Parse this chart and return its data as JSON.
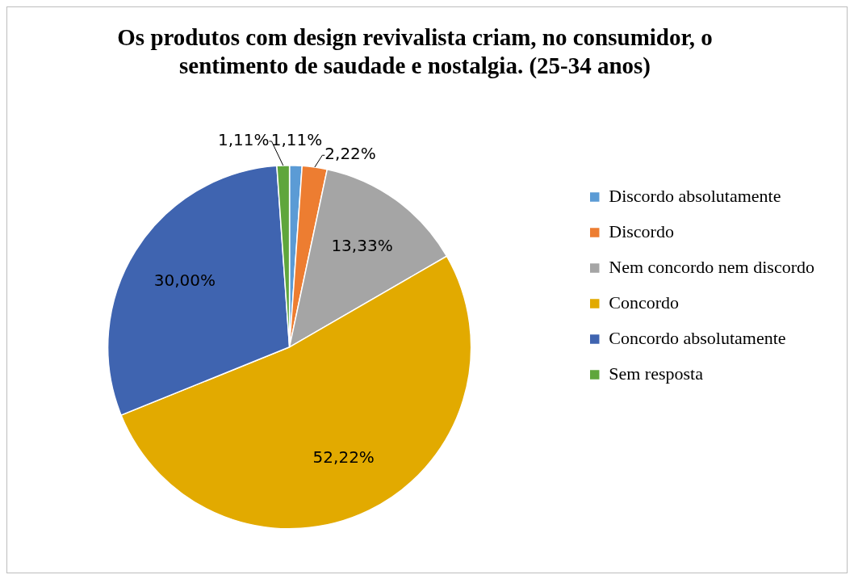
{
  "chart_data": {
    "type": "pie",
    "title": "Os produtos com design revivalista criam, no consumidor, o sentimento de saudade e nostalgia. (25-34 anos)",
    "categories": [
      "Discordo absolutamente",
      "Discordo",
      "Nem concordo nem discordo",
      "Concordo",
      "Concordo absolutamente",
      "Sem resposta"
    ],
    "values": [
      1.11,
      2.22,
      13.33,
      52.22,
      30.0,
      1.11
    ],
    "colors": [
      "#5b9bd5",
      "#ed7d31",
      "#a5a5a5",
      "#e2aa00",
      "#3f64b0",
      "#5fa63c"
    ],
    "value_labels": [
      "1,11%",
      "2,22%",
      "13,33%",
      "52,22%",
      "30,00%",
      "1,11%"
    ],
    "legend": "right"
  }
}
